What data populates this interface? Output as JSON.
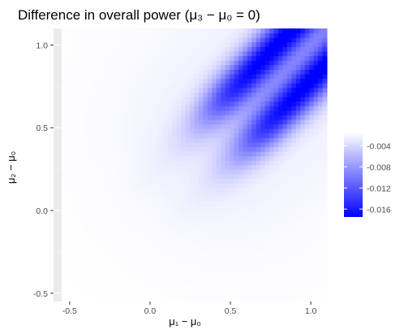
{
  "chart_data": {
    "type": "heatmap",
    "title": "Difference in overall power (μ₃ − μ₀ = 0)",
    "xlabel": "μ₁ − μ₀",
    "ylabel": "μ₂ − μ₀",
    "xlim": [
      -0.6,
      1.1
    ],
    "ylim": [
      -0.55,
      1.1
    ],
    "data_extent": {
      "x": [
        -0.55,
        1.1
      ],
      "y": [
        -0.55,
        1.1
      ]
    },
    "x_ticks": [
      -0.5,
      0.0,
      0.5,
      1.0
    ],
    "x_tick_labels": [
      "-0.5",
      "0.0",
      "0.5",
      "1.0"
    ],
    "y_ticks": [
      -0.5,
      0.0,
      0.5,
      1.0
    ],
    "y_tick_labels": [
      "-0.5",
      "0.0",
      "0.5",
      "1.0"
    ],
    "grid": true,
    "legend_position": "right",
    "color_scale": {
      "low_color": "#0000ff",
      "high_color": "#ffffff",
      "min": -0.0175,
      "max": -0.0015,
      "ticks": [
        -0.004,
        -0.008,
        -0.012,
        -0.016
      ],
      "tick_labels": [
        "-0.004",
        "-0.008",
        "-0.012",
        "-0.016"
      ]
    },
    "description_values": {
      "min_value": -0.0175,
      "background_value": -0.0015,
      "band_offsets": [
        -0.15,
        0.15
      ],
      "band_start": 0.5
    }
  },
  "colors": {
    "panel_background": "#ebebeb",
    "grid_major": "#ffffff",
    "grid_minor": "#f5f5f5"
  }
}
